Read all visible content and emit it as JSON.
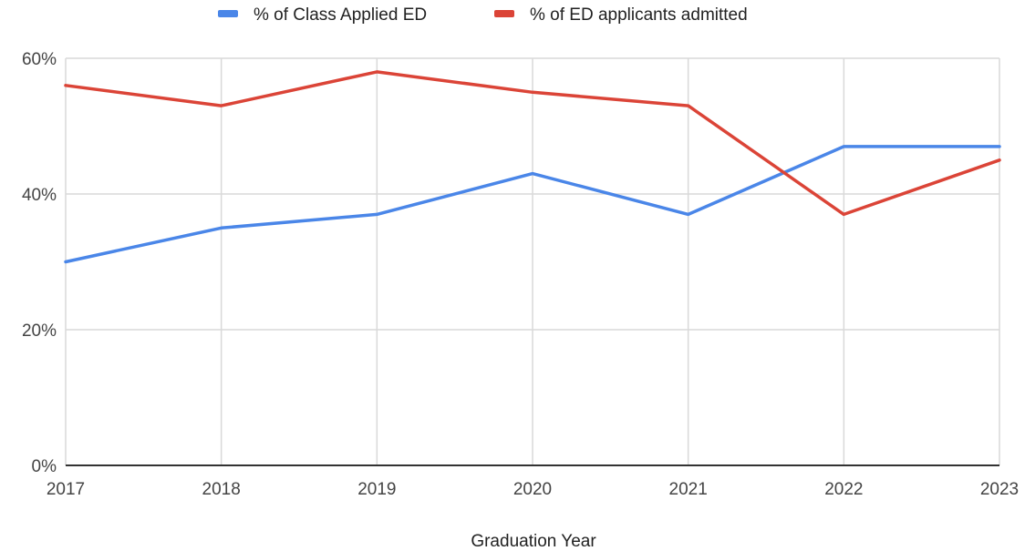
{
  "chart_data": {
    "type": "line",
    "x": [
      "2017",
      "2018",
      "2019",
      "2020",
      "2021",
      "2022",
      "2023"
    ],
    "series": [
      {
        "name": "% of Class Applied ED",
        "color": "#4a86e8",
        "values": [
          30,
          35,
          37,
          43,
          37,
          47,
          47
        ]
      },
      {
        "name": "% of ED applicants admitted",
        "color": "#db4437",
        "values": [
          56,
          53,
          58,
          55,
          53,
          37,
          45
        ]
      }
    ],
    "xlabel": "Graduation Year",
    "ylabel": "",
    "ylim": [
      0,
      60
    ],
    "yticks": [
      0,
      20,
      40,
      60
    ],
    "yticks_labels": [
      "0%",
      "20%",
      "40%",
      "60%"
    ],
    "grid": true,
    "legend_position": "top-center"
  }
}
